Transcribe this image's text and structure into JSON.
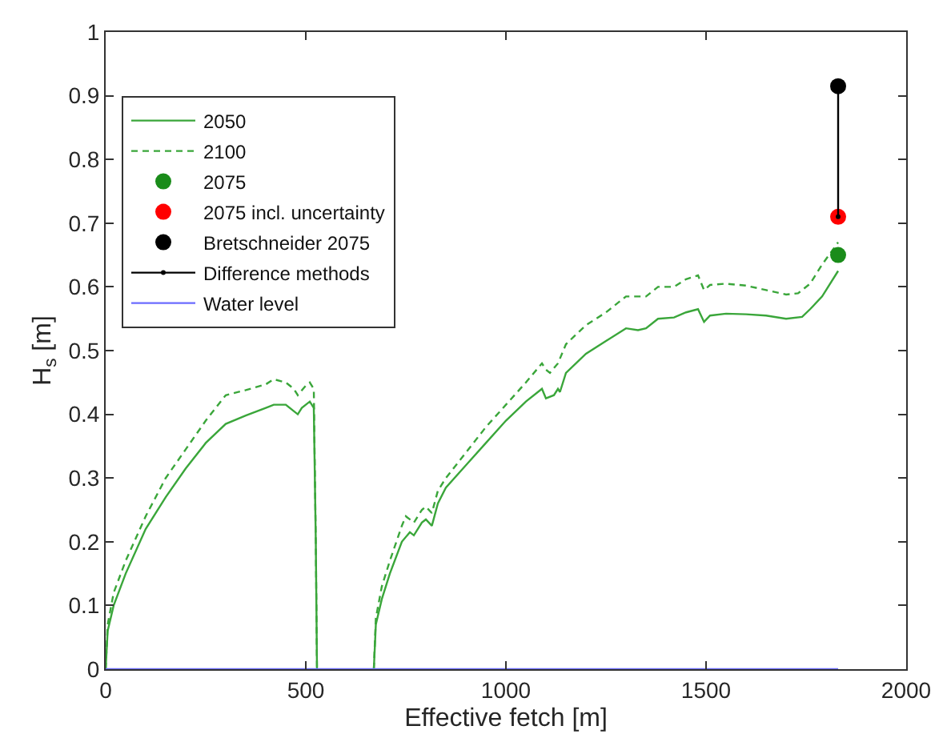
{
  "chart_data": {
    "type": "line",
    "xlabel": "Effective fetch [m]",
    "ylabel": "H$_{s}$ [m]",
    "xlim": [
      0,
      2000
    ],
    "xticks": [
      0,
      500,
      1000,
      1500,
      2000
    ],
    "ylim": [
      0,
      1
    ],
    "yticks": [
      0,
      0.1,
      0.2,
      0.3,
      0.4,
      0.5,
      0.6,
      0.7,
      0.8,
      0.9,
      1
    ],
    "legend": "top left",
    "series": [
      {
        "name": "2050",
        "color": "#3aa63a",
        "line_style": "solid",
        "marker": "none",
        "x": [
          0,
          5,
          20,
          50,
          100,
          150,
          200,
          250,
          300,
          350,
          400,
          420,
          450,
          470,
          480,
          490,
          500,
          510,
          520,
          525,
          528,
          600,
          670,
          675,
          690,
          710,
          740,
          760,
          770,
          790,
          800,
          815,
          830,
          850,
          900,
          950,
          1000,
          1050,
          1090,
          1100,
          1120,
          1130,
          1135,
          1150,
          1200,
          1250,
          1300,
          1330,
          1350,
          1380,
          1420,
          1450,
          1480,
          1495,
          1510,
          1550,
          1600,
          1650,
          1700,
          1740,
          1760,
          1790,
          1830
        ],
        "values": [
          0,
          0.06,
          0.1,
          0.15,
          0.22,
          0.27,
          0.315,
          0.355,
          0.385,
          0.398,
          0.41,
          0.415,
          0.415,
          0.405,
          0.4,
          0.41,
          0.415,
          0.42,
          0.41,
          0.2,
          0,
          null,
          0,
          0.07,
          0.11,
          0.15,
          0.2,
          0.215,
          0.21,
          0.23,
          0.235,
          0.225,
          0.26,
          0.285,
          0.32,
          0.355,
          0.39,
          0.42,
          0.44,
          0.425,
          0.43,
          0.44,
          0.435,
          0.465,
          0.495,
          0.515,
          0.535,
          0.532,
          0.535,
          0.55,
          0.552,
          0.56,
          0.565,
          0.545,
          0.555,
          0.558,
          0.557,
          0.555,
          0.55,
          0.553,
          0.565,
          0.585,
          0.625
        ]
      },
      {
        "name": "2100",
        "color": "#3aa63a",
        "line_style": "dashed",
        "marker": "none",
        "x": [
          0,
          5,
          20,
          50,
          100,
          150,
          200,
          250,
          300,
          350,
          400,
          420,
          450,
          470,
          480,
          500,
          510,
          520,
          525,
          528,
          600,
          670,
          675,
          690,
          710,
          740,
          750,
          770,
          790,
          800,
          815,
          830,
          850,
          900,
          950,
          1000,
          1050,
          1090,
          1100,
          1110,
          1130,
          1150,
          1200,
          1250,
          1300,
          1330,
          1350,
          1380,
          1420,
          1450,
          1480,
          1495,
          1510,
          1550,
          1600,
          1650,
          1700,
          1730,
          1760,
          1790,
          1830
        ],
        "values": [
          0,
          0.07,
          0.12,
          0.17,
          0.24,
          0.3,
          0.345,
          0.39,
          0.43,
          0.438,
          0.447,
          0.455,
          0.45,
          0.44,
          0.43,
          0.445,
          0.45,
          0.44,
          0.2,
          0,
          null,
          0,
          0.08,
          0.13,
          0.17,
          0.225,
          0.24,
          0.23,
          0.25,
          0.255,
          0.245,
          0.28,
          0.3,
          0.34,
          0.38,
          0.415,
          0.45,
          0.48,
          0.47,
          0.465,
          0.48,
          0.51,
          0.54,
          0.56,
          0.585,
          0.585,
          0.585,
          0.6,
          0.6,
          0.612,
          0.618,
          0.595,
          0.603,
          0.605,
          0.602,
          0.595,
          0.588,
          0.59,
          0.605,
          0.635,
          0.67
        ]
      },
      {
        "name": "2075",
        "type": "scatter",
        "color": "#1a8c1a",
        "marker": "circle",
        "x": [
          1830
        ],
        "values": [
          0.65
        ]
      },
      {
        "name": "2075 incl. uncertainty",
        "type": "scatter",
        "color": "#ff0000",
        "marker": "circle",
        "x": [
          1830
        ],
        "values": [
          0.71
        ]
      },
      {
        "name": "Bretschneider 2075",
        "type": "scatter",
        "color": "#000000",
        "marker": "circle",
        "x": [
          1830
        ],
        "values": [
          0.915
        ]
      },
      {
        "name": "Difference methods",
        "color": "#000000",
        "line_style": "solid",
        "marker": "circle",
        "x": [
          1830,
          1830
        ],
        "values": [
          0.71,
          0.915
        ]
      },
      {
        "name": "Water level",
        "color": "#6b6bff",
        "line_style": "solid",
        "marker": "none",
        "x": [
          0,
          1830
        ],
        "values": [
          0,
          0
        ]
      }
    ]
  }
}
